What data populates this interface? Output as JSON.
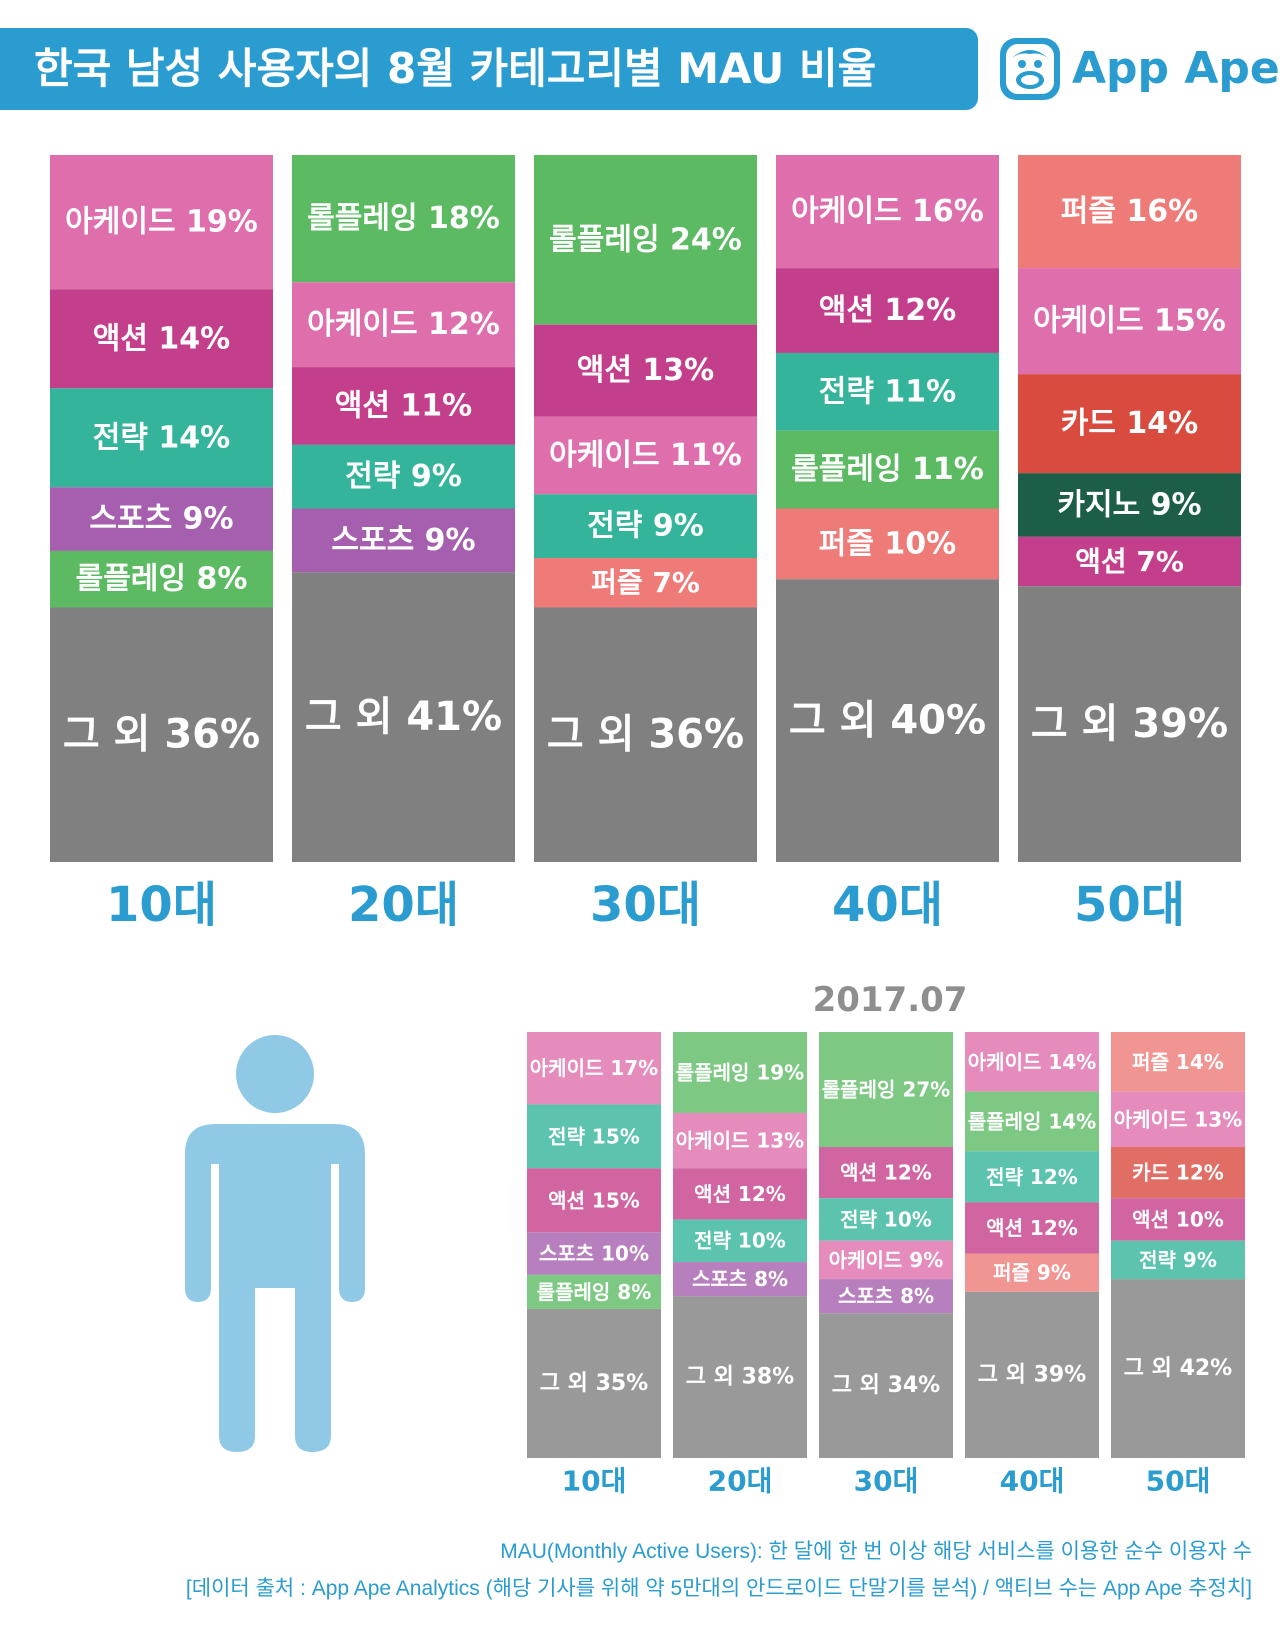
{
  "header": {
    "title": "한국 남성 사용자의 8월 카테고리별 MAU 비율",
    "logo_text": "App Ape"
  },
  "colors": {
    "아케이드": "#df6fac",
    "액션": "#c43f8b",
    "전략": "#33b49b",
    "스포츠": "#a55fae",
    "롤플레잉": "#5cba63",
    "퍼즐": "#ee7b78",
    "카드": "#d94a3f",
    "카지노": "#1c5e47",
    "그 외": "#808080",
    "title_blue": "#2a9cd0",
    "person": "#8fc9e6"
  },
  "chart_data": [
    {
      "type": "bar",
      "stacked": true,
      "categories": [
        "10대",
        "20대",
        "30대",
        "40대",
        "50대"
      ],
      "segments": [
        [
          {
            "label": "아케이드 19%",
            "category": "아케이드",
            "value": 19
          },
          {
            "label": "액션 14%",
            "category": "액션",
            "value": 14
          },
          {
            "label": "전략 14%",
            "category": "전략",
            "value": 14
          },
          {
            "label": "스포츠 9%",
            "category": "스포츠",
            "value": 9
          },
          {
            "label": "롤플레잉 8%",
            "category": "롤플레잉",
            "value": 8
          },
          {
            "label": "그 외 36%",
            "category": "그 외",
            "value": 36
          }
        ],
        [
          {
            "label": "롤플레잉 18%",
            "category": "롤플레잉",
            "value": 18
          },
          {
            "label": "아케이드 12%",
            "category": "아케이드",
            "value": 12
          },
          {
            "label": "액션 11%",
            "category": "액션",
            "value": 11
          },
          {
            "label": "전략 9%",
            "category": "전략",
            "value": 9
          },
          {
            "label": "스포츠 9%",
            "category": "스포츠",
            "value": 9
          },
          {
            "label": "그 외 41%",
            "category": "그 외",
            "value": 41
          }
        ],
        [
          {
            "label": "롤플레잉 24%",
            "category": "롤플레잉",
            "value": 24
          },
          {
            "label": "액션 13%",
            "category": "액션",
            "value": 13
          },
          {
            "label": "아케이드 11%",
            "category": "아케이드",
            "value": 11
          },
          {
            "label": "전략 9%",
            "category": "전략",
            "value": 9
          },
          {
            "label": "퍼즐 7%",
            "category": "퍼즐",
            "value": 7
          },
          {
            "label": "그 외 36%",
            "category": "그 외",
            "value": 36
          }
        ],
        [
          {
            "label": "아케이드 16%",
            "category": "아케이드",
            "value": 16
          },
          {
            "label": "액션 12%",
            "category": "액션",
            "value": 12
          },
          {
            "label": "전략 11%",
            "category": "전략",
            "value": 11
          },
          {
            "label": "롤플레잉 11%",
            "category": "롤플레잉",
            "value": 11
          },
          {
            "label": "퍼즐 10%",
            "category": "퍼즐",
            "value": 10
          },
          {
            "label": "그 외 40%",
            "category": "그 외",
            "value": 40
          }
        ],
        [
          {
            "label": "퍼즐 16%",
            "category": "퍼즐",
            "value": 16
          },
          {
            "label": "아케이드 15%",
            "category": "아케이드",
            "value": 15
          },
          {
            "label": "카드 14%",
            "category": "카드",
            "value": 14
          },
          {
            "label": "카지노 9%",
            "category": "카지노",
            "value": 9
          },
          {
            "label": "액션 7%",
            "category": "액션",
            "value": 7
          },
          {
            "label": "그 외 39%",
            "category": "그 외",
            "value": 39
          }
        ]
      ]
    },
    {
      "type": "bar",
      "stacked": true,
      "title": "2017.07",
      "categories": [
        "10대",
        "20대",
        "30대",
        "40대",
        "50대"
      ],
      "segments": [
        [
          {
            "label": "아케이드 17%",
            "category": "아케이드",
            "value": 17
          },
          {
            "label": "전략 15%",
            "category": "전략",
            "value": 15
          },
          {
            "label": "액션 15%",
            "category": "액션",
            "value": 15
          },
          {
            "label": "스포츠 10%",
            "category": "스포츠",
            "value": 10
          },
          {
            "label": "롤플레잉 8%",
            "category": "롤플레잉",
            "value": 8
          },
          {
            "label": "그 외 35%",
            "category": "그 외",
            "value": 35
          }
        ],
        [
          {
            "label": "롤플레잉 19%",
            "category": "롤플레잉",
            "value": 19
          },
          {
            "label": "아케이드 13%",
            "category": "아케이드",
            "value": 13
          },
          {
            "label": "액션 12%",
            "category": "액션",
            "value": 12
          },
          {
            "label": "전략 10%",
            "category": "전략",
            "value": 10
          },
          {
            "label": "스포츠 8%",
            "category": "스포츠",
            "value": 8
          },
          {
            "label": "그 외 38%",
            "category": "그 외",
            "value": 38
          }
        ],
        [
          {
            "label": "롤플레잉 27%",
            "category": "롤플레잉",
            "value": 27
          },
          {
            "label": "액션 12%",
            "category": "액션",
            "value": 12
          },
          {
            "label": "전략 10%",
            "category": "전략",
            "value": 10
          },
          {
            "label": "아케이드 9%",
            "category": "아케이드",
            "value": 9
          },
          {
            "label": "스포츠 8%",
            "category": "스포츠",
            "value": 8
          },
          {
            "label": "그 외 34%",
            "category": "그 외",
            "value": 34
          }
        ],
        [
          {
            "label": "아케이드 14%",
            "category": "아케이드",
            "value": 14
          },
          {
            "label": "롤플레잉 14%",
            "category": "롤플레잉",
            "value": 14
          },
          {
            "label": "전략 12%",
            "category": "전략",
            "value": 12
          },
          {
            "label": "액션 12%",
            "category": "액션",
            "value": 12
          },
          {
            "label": "퍼즐 9%",
            "category": "퍼즐",
            "value": 9
          },
          {
            "label": "그 외 39%",
            "category": "그 외",
            "value": 39
          }
        ],
        [
          {
            "label": "퍼즐 14%",
            "category": "퍼즐",
            "value": 14
          },
          {
            "label": "아케이드 13%",
            "category": "아케이드",
            "value": 13
          },
          {
            "label": "카드 12%",
            "category": "카드",
            "value": 12
          },
          {
            "label": "액션 10%",
            "category": "액션",
            "value": 10
          },
          {
            "label": "전략 9%",
            "category": "전략",
            "value": 9
          },
          {
            "label": "그 외 42%",
            "category": "그 외",
            "value": 42
          }
        ]
      ]
    }
  ],
  "footer": {
    "definition": "MAU(Monthly Active Users): 한 달에 한 번 이상 해당 서비스를 이용한 순수 이용자 수",
    "source": "[데이터 출처 : App Ape Analytics (해당 기사를 위해 약 5만대의 안드로이드 단말기를 분석) / 액티브 수는 App Ape 추정치]"
  }
}
